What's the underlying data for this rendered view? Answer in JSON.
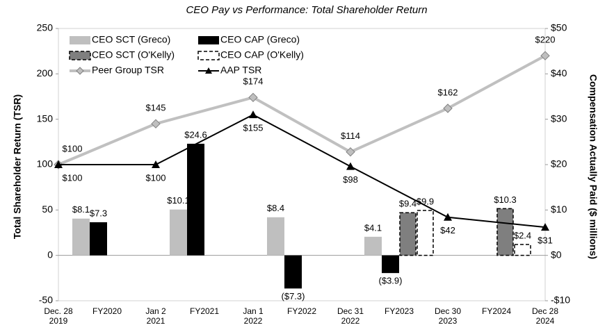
{
  "chart_data": {
    "type": "bar-line",
    "title": "CEO Pay vs Performance: Total Shareholder Return",
    "y_label": "Total Shareholder Return (TSR)",
    "y2_label": "Compensation Actually Paid ($ millions)",
    "date_categories": [
      "Dec. 28\n2019",
      "Jan 2\n2021",
      "Jan 1\n2022",
      "Dec 31\n2022",
      "Dec 30\n2023",
      "Dec 28\n2024"
    ],
    "fiscal_categories": [
      "FY2020",
      "FY2021",
      "FY2022",
      "FY2023",
      "FY2024"
    ],
    "ylim": [
      -50,
      250
    ],
    "yticks": [
      -50,
      0,
      50,
      100,
      150,
      200,
      250
    ],
    "y2lim": [
      -10,
      50
    ],
    "y2ticks": [
      {
        "value": -10,
        "label": "-$10"
      },
      {
        "value": 0,
        "label": "$0"
      },
      {
        "value": 10,
        "label": "$10"
      },
      {
        "value": 20,
        "label": "$20"
      },
      {
        "value": 30,
        "label": "$30"
      },
      {
        "value": 40,
        "label": "$40"
      },
      {
        "value": 50,
        "label": "$50"
      }
    ],
    "bar_series": [
      {
        "name": "CEO SCT (Greco)",
        "color": "#bfbfbf",
        "border": "none",
        "axis": "y2",
        "values": [
          8.1,
          10.1,
          8.4,
          4.1,
          null
        ],
        "value_labels": [
          "$8.1",
          "$10.1",
          "$8.4",
          "$4.1",
          null
        ]
      },
      {
        "name": "CEO CAP (Greco)",
        "color": "#000000",
        "border": "none",
        "axis": "y2",
        "values": [
          7.3,
          24.6,
          -7.3,
          -3.9,
          null
        ],
        "value_labels": [
          "$7.3",
          "$24.6",
          "($7.3)",
          "($3.9)",
          null
        ]
      },
      {
        "name": "CEO SCT (O'Kelly)",
        "color": "#7f7f7f",
        "border": "dashed",
        "axis": "y2",
        "values": [
          null,
          null,
          null,
          9.4,
          10.3
        ],
        "value_labels": [
          null,
          null,
          null,
          "$9.4",
          "$10.3"
        ]
      },
      {
        "name": "CEO CAP (O'Kelly)",
        "color": "#ffffff",
        "border": "dashed",
        "axis": "y2",
        "values": [
          null,
          null,
          null,
          9.9,
          2.4
        ],
        "value_labels": [
          null,
          null,
          null,
          "$9.9",
          "$2.4"
        ]
      }
    ],
    "line_series": [
      {
        "name": "Peer Group TSR",
        "color": "#c0c0c0",
        "marker": "diamond",
        "values": [
          100,
          145,
          174,
          114,
          162,
          220
        ],
        "value_labels": [
          "$100",
          "$145",
          "$174",
          "$114",
          "$162",
          "$220"
        ]
      },
      {
        "name": "AAP TSR",
        "color": "#000000",
        "marker": "triangle",
        "values": [
          100,
          100,
          155,
          98,
          42,
          31
        ],
        "value_labels": [
          "$100",
          "$100",
          "$155",
          "$98",
          "$42",
          "$31"
        ]
      }
    ]
  }
}
